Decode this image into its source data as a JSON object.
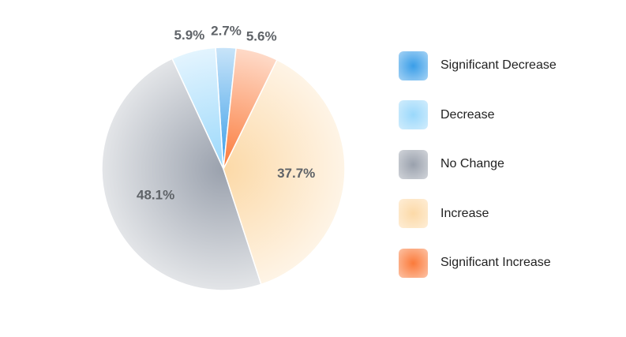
{
  "chart_data": {
    "type": "pie",
    "categories": [
      "Significant Decrease",
      "Decrease",
      "No Change",
      "Increase",
      "Significant Increase"
    ],
    "values": [
      2.7,
      5.9,
      48.1,
      37.7,
      5.6
    ],
    "value_labels": [
      "2.7%",
      "5.9%",
      "48.1%",
      "37.7%",
      "5.6%"
    ],
    "colors": [
      "#3a9ee8",
      "#9ad8fb",
      "#9aa1ad",
      "#fcd9a7",
      "#fb7a3a"
    ],
    "title": "",
    "legend_position": "right"
  }
}
